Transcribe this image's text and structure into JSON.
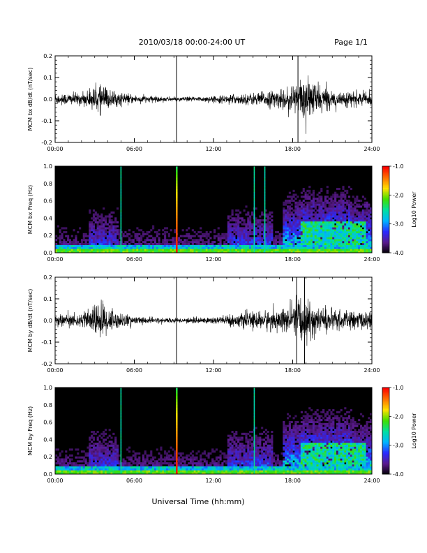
{
  "header": {
    "date_range": "2010/03/18  00:00-24:00 UT",
    "page": "Page 1/1"
  },
  "footer": {
    "xlabel": "Universal Time (hh:mm)"
  },
  "colors": {
    "trace": "#000000",
    "colorbar": [
      "#000000",
      "#5a1a8c",
      "#2a2aff",
      "#00b4ff",
      "#00e0a0",
      "#40e000",
      "#ffe000",
      "#ff7000",
      "#ff0000"
    ]
  },
  "chart_data": [
    {
      "type": "line",
      "id": "bx-dbdt",
      "ylabel": "MCM bx dB/dt (nT/sec)",
      "x_ticks": [
        "00:00",
        "06:00",
        "12:00",
        "18:00",
        "24:00"
      ],
      "xlim": [
        0,
        24
      ],
      "ylim": [
        -0.2,
        0.2
      ],
      "y_ticks": [
        "0.2",
        "0.1",
        "0.0",
        "-0.1",
        "-0.2"
      ],
      "baseline": 0.0,
      "envelope": [
        {
          "x": 0,
          "amp": 0.03
        },
        {
          "x": 2,
          "amp": 0.03
        },
        {
          "x": 3.6,
          "amp": 0.07
        },
        {
          "x": 4.3,
          "amp": 0.04
        },
        {
          "x": 6,
          "amp": 0.02
        },
        {
          "x": 9.2,
          "amp": 0.01
        },
        {
          "x": 12,
          "amp": 0.015
        },
        {
          "x": 15,
          "amp": 0.03
        },
        {
          "x": 17.5,
          "amp": 0.05
        },
        {
          "x": 18.5,
          "amp": 0.1
        },
        {
          "x": 19.5,
          "amp": 0.09
        },
        {
          "x": 21,
          "amp": 0.04
        },
        {
          "x": 24,
          "amp": 0.03
        }
      ],
      "spikes": [
        9.2,
        18.4
      ]
    },
    {
      "type": "heatmap",
      "id": "bx-freq",
      "ylabel": "MCM bx Freq (Hz)",
      "x_ticks": [
        "00:00",
        "06:00",
        "12:00",
        "18:00",
        "24:00"
      ],
      "xlim": [
        0,
        24
      ],
      "ylim": [
        0.0,
        1.0
      ],
      "y_ticks": [
        "1.0",
        "0.8",
        "0.6",
        "0.4",
        "0.2",
        "0.0"
      ],
      "colorbar": {
        "label": "Log10 Power",
        "ticks": [
          "-1.0",
          "-2.0",
          "-3.0",
          "-4.0"
        ],
        "range": [
          -4.0,
          -1.0
        ]
      },
      "bright_lines": [
        5.0,
        9.2,
        15.1,
        15.9
      ]
    },
    {
      "type": "line",
      "id": "by-dbdt",
      "ylabel": "MCM by dB/dt (nT/sec)",
      "x_ticks": [
        "00:00",
        "06:00",
        "12:00",
        "18:00",
        "24:00"
      ],
      "xlim": [
        0,
        24
      ],
      "ylim": [
        -0.2,
        0.2
      ],
      "y_ticks": [
        "0.2",
        "0.1",
        "0.0",
        "-0.1",
        "-0.2"
      ],
      "baseline": 0.0,
      "envelope": [
        {
          "x": 0,
          "amp": 0.03
        },
        {
          "x": 2,
          "amp": 0.03
        },
        {
          "x": 3.6,
          "amp": 0.1
        },
        {
          "x": 4.3,
          "amp": 0.05
        },
        {
          "x": 6,
          "amp": 0.02
        },
        {
          "x": 9.2,
          "amp": 0.01
        },
        {
          "x": 12,
          "amp": 0.02
        },
        {
          "x": 15,
          "amp": 0.04
        },
        {
          "x": 17.5,
          "amp": 0.06
        },
        {
          "x": 18.5,
          "amp": 0.12
        },
        {
          "x": 19.5,
          "amp": 0.08
        },
        {
          "x": 21,
          "amp": 0.05
        },
        {
          "x": 24,
          "amp": 0.04
        }
      ],
      "spikes": [
        9.2,
        18.3,
        18.9
      ]
    },
    {
      "type": "heatmap",
      "id": "by-freq",
      "ylabel": "MCM by Freq (Hz)",
      "x_ticks": [
        "00:00",
        "06:00",
        "12:00",
        "18:00",
        "24:00"
      ],
      "xlim": [
        0,
        24
      ],
      "ylim": [
        0.0,
        1.0
      ],
      "y_ticks": [
        "1.0",
        "0.8",
        "0.6",
        "0.4",
        "0.2",
        "0.0"
      ],
      "colorbar": {
        "label": "Log10 Power",
        "ticks": [
          "-1.0",
          "-2.0",
          "-3.0",
          "-4.0"
        ],
        "range": [
          -4.0,
          -1.0
        ]
      },
      "bright_lines": [
        5.0,
        9.2,
        15.1
      ]
    }
  ]
}
